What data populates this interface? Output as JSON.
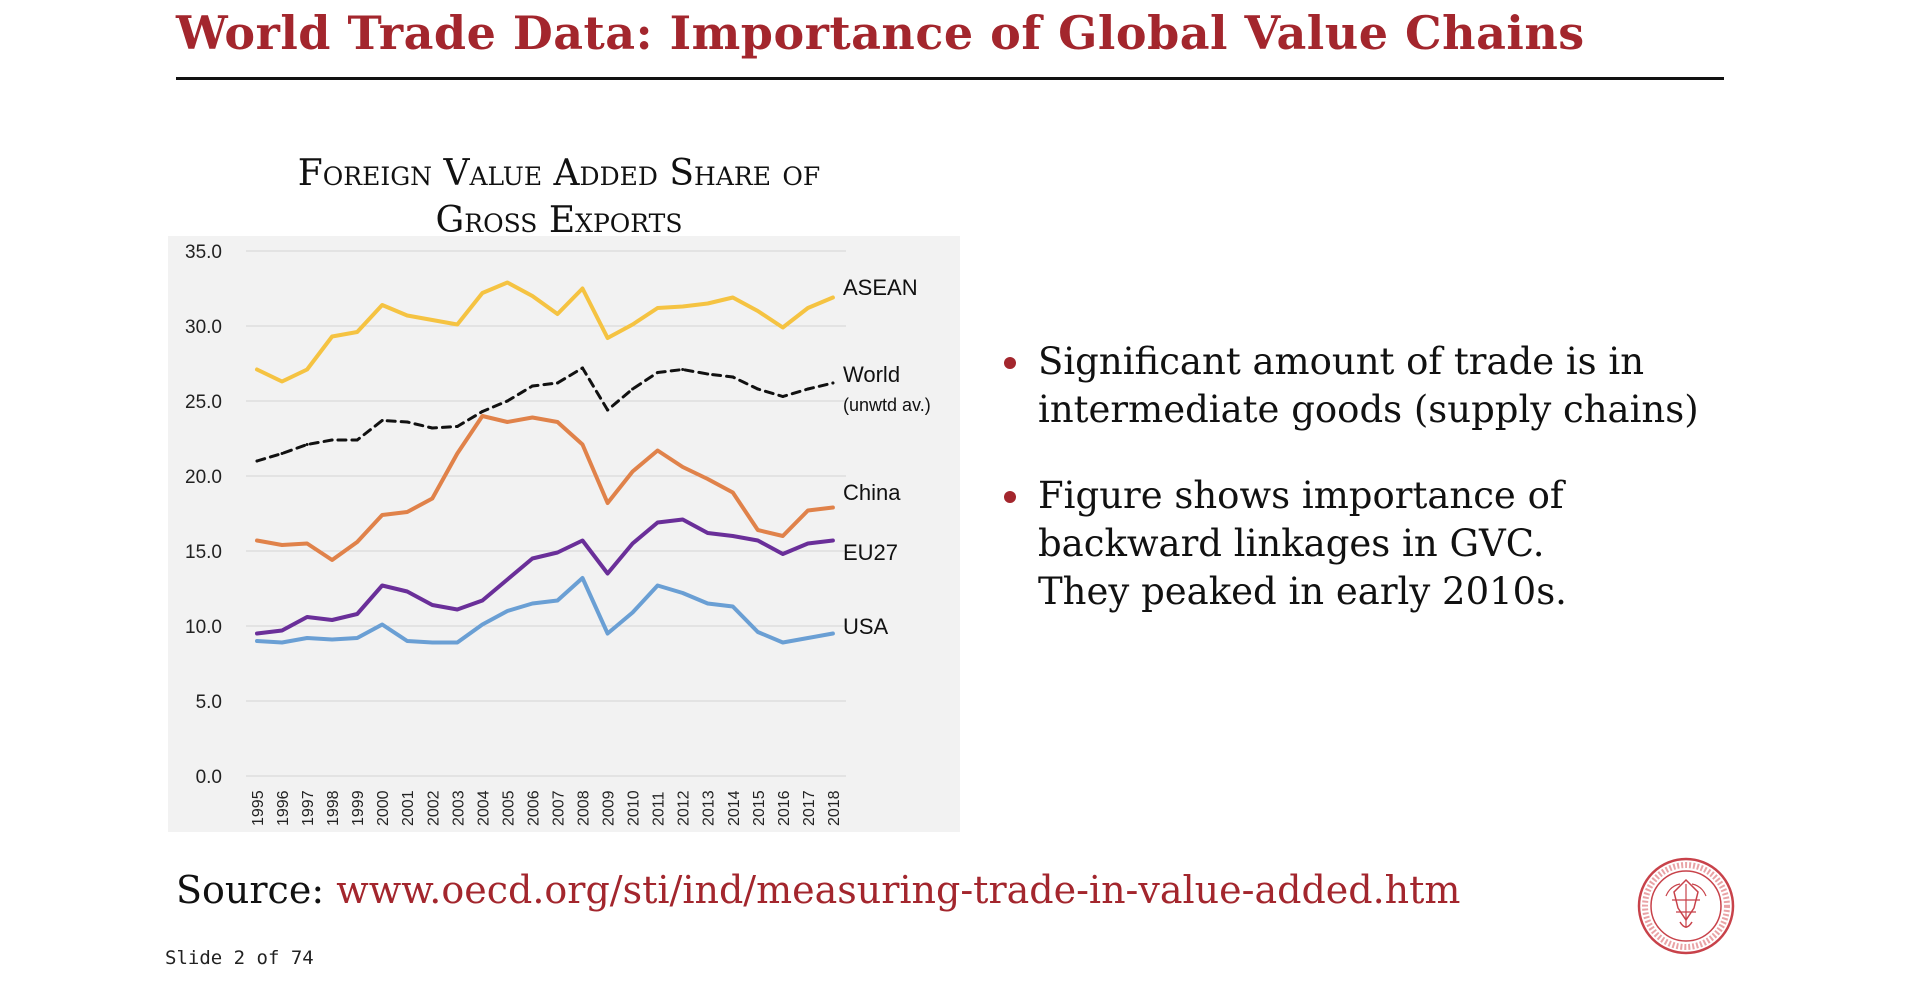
{
  "slide": {
    "title": "World Trade Data: Importance of Global Value Chains",
    "source_label": "Source:",
    "source_url": "www.oecd.org/sti/ind/measuring-trade-in-value-added.htm",
    "slide_number": "Slide 2 of 74",
    "accent_color": "#a3262d"
  },
  "bullets": [
    {
      "lines": [
        "Significant amount of trade is in",
        "intermediate goods (supply chains)"
      ]
    },
    {
      "lines": [
        "Figure shows importance of",
        "backward linkages in GVC.",
        "They peaked in early 2010s."
      ]
    }
  ],
  "chart_data": {
    "type": "line",
    "title_lines": [
      "Foreign Value Added Share of",
      "Gross Exports"
    ],
    "x": [
      "1995",
      "1996",
      "1997",
      "1998",
      "1999",
      "2000",
      "2001",
      "2002",
      "2003",
      "2004",
      "2005",
      "2006",
      "2007",
      "2008",
      "2009",
      "2010",
      "2011",
      "2012",
      "2013",
      "2014",
      "2015",
      "2016",
      "2017",
      "2018"
    ],
    "ylim": [
      0,
      35
    ],
    "yticks": [
      "0.0",
      "5.0",
      "10.0",
      "15.0",
      "20.0",
      "25.0",
      "30.0",
      "35.0"
    ],
    "grid": true,
    "series": [
      {
        "name": "ASEAN",
        "color": "#f5c342",
        "dash": false,
        "values": [
          27.1,
          26.3,
          27.1,
          29.3,
          29.6,
          31.4,
          30.7,
          30.4,
          30.1,
          32.2,
          32.9,
          32.0,
          30.8,
          32.5,
          29.2,
          30.1,
          31.2,
          31.3,
          31.5,
          31.9,
          31.0,
          29.9,
          31.2,
          31.9
        ]
      },
      {
        "name": "World",
        "sublabel": "(unwtd av.)",
        "color": "#111111",
        "dash": true,
        "values": [
          21.0,
          21.5,
          22.1,
          22.4,
          22.4,
          23.7,
          23.6,
          23.2,
          23.3,
          24.3,
          25.0,
          26.0,
          26.2,
          27.2,
          24.4,
          25.8,
          26.9,
          27.1,
          26.8,
          26.6,
          25.8,
          25.3,
          25.8,
          26.2
        ]
      },
      {
        "name": "China",
        "color": "#e0824a",
        "dash": false,
        "values": [
          15.7,
          15.4,
          15.5,
          14.4,
          15.6,
          17.4,
          17.6,
          18.5,
          21.5,
          24.0,
          23.6,
          23.9,
          23.6,
          22.1,
          18.2,
          20.3,
          21.7,
          20.6,
          19.8,
          18.9,
          16.4,
          16.0,
          17.7,
          17.9
        ]
      },
      {
        "name": "EU27",
        "color": "#6a2f99",
        "dash": false,
        "values": [
          9.5,
          9.7,
          10.6,
          10.4,
          10.8,
          12.7,
          12.3,
          11.4,
          11.1,
          11.7,
          13.1,
          14.5,
          14.9,
          15.7,
          13.5,
          15.5,
          16.9,
          17.1,
          16.2,
          16.0,
          15.7,
          14.8,
          15.5,
          15.7
        ]
      },
      {
        "name": "USA",
        "color": "#6a9fd4",
        "dash": false,
        "values": [
          9.0,
          8.9,
          9.2,
          9.1,
          9.2,
          10.1,
          9.0,
          8.9,
          8.9,
          10.1,
          11.0,
          11.5,
          11.7,
          13.2,
          9.5,
          10.9,
          12.7,
          12.2,
          11.5,
          11.3,
          9.6,
          8.9,
          9.2,
          9.5
        ]
      }
    ]
  }
}
